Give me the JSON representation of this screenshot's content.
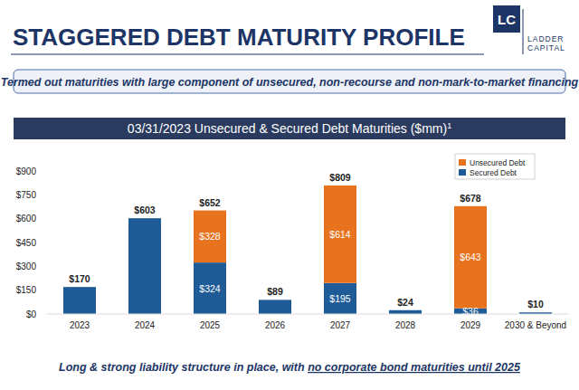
{
  "slide": {
    "title": "STAGGERED DEBT MATURITY PROFILE",
    "logo_mark": "LC",
    "logo_lines": [
      "LADDER",
      "CAPITAL"
    ],
    "banner": "Termed out maturities with large component of unsecured, non-recourse and non-mark-to-market financing",
    "footer_parts": [
      "Long & strong liability structure in place, with ",
      "no corporate bond maturities until 2025"
    ]
  },
  "chart_data": {
    "type": "bar",
    "stacked": true,
    "data_labels": true,
    "grid": false,
    "legend": "top-right",
    "title": "03/31/2023 Unsecured & Secured Debt Maturities ($mm)",
    "title_note": "1",
    "categories": [
      "2023",
      "2024",
      "2025",
      "2026",
      "2027",
      "2028",
      "2029",
      "2030 & Beyond"
    ],
    "series": [
      {
        "name": "Secured Debt",
        "color": "#1f5b97",
        "values": [
          170,
          603,
          324,
          89,
          195,
          24,
          36,
          10
        ],
        "value_labels": [
          null,
          null,
          "$324",
          null,
          "$195",
          null,
          "$36",
          null
        ]
      },
      {
        "name": "Unsecured Debt",
        "color": "#e8731f",
        "values": [
          0,
          0,
          328,
          0,
          614,
          0,
          643,
          0
        ],
        "value_labels": [
          null,
          null,
          "$328",
          null,
          "$614",
          null,
          "$643",
          null
        ]
      }
    ],
    "totals": [
      170,
      603,
      652,
      89,
      809,
      24,
      678,
      10
    ],
    "total_labels": [
      "$170",
      "$603",
      "$652",
      "$89",
      "$809",
      "$24",
      "$678",
      "$10"
    ],
    "ylim": [
      0,
      900
    ],
    "yticks": [
      {
        "value": 0,
        "label": "$0"
      },
      {
        "value": 150,
        "label": "$150"
      },
      {
        "value": 300,
        "label": "$300"
      },
      {
        "value": 450,
        "label": "$450"
      },
      {
        "value": 600,
        "label": "$600"
      },
      {
        "value": 750,
        "label": "$750"
      },
      {
        "value": 900,
        "label": "$900"
      }
    ]
  }
}
